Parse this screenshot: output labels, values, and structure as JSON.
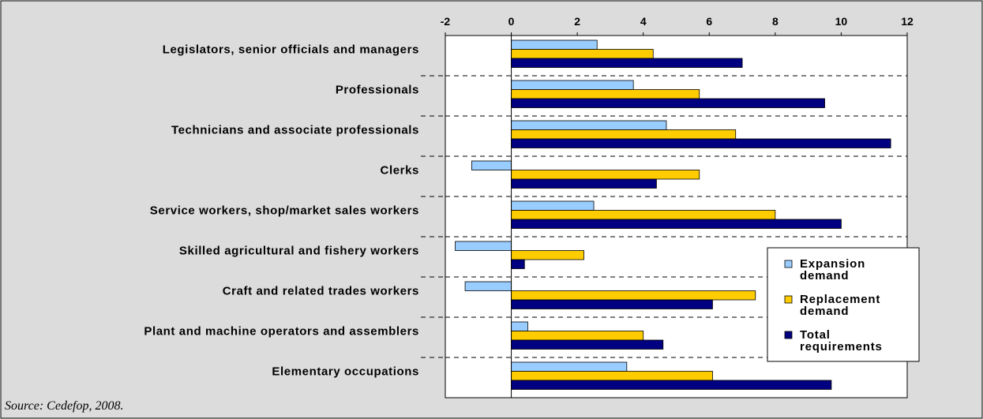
{
  "chart_data": {
    "type": "bar",
    "orientation": "horizontal",
    "categories": [
      "Legislators, senior officials and managers",
      "Professionals",
      "Technicians and associate professionals",
      "Clerks",
      "Service workers, shop/market sales workers",
      "Skilled agricultural and fishery workers",
      "Craft and related trades workers",
      "Plant and machine operators and assemblers",
      "Elementary occupations"
    ],
    "series": [
      {
        "name": "Expansion demand",
        "color": "#99ccff",
        "values": [
          2.6,
          3.7,
          4.7,
          -1.2,
          2.5,
          -1.7,
          -1.4,
          0.5,
          3.5
        ]
      },
      {
        "name": "Replacement demand",
        "color": "#ffcc00",
        "values": [
          4.3,
          5.7,
          6.8,
          5.7,
          8.0,
          2.2,
          7.4,
          4.0,
          6.1
        ]
      },
      {
        "name": "Total requirements",
        "color": "#000080",
        "values": [
          7.0,
          9.5,
          11.5,
          4.4,
          10.0,
          0.4,
          6.1,
          4.6,
          9.7
        ]
      }
    ],
    "xlim": [
      -2,
      12
    ],
    "xticks": [
      "-2",
      "0",
      "2",
      "4",
      "6",
      "8",
      "10",
      "12"
    ],
    "xaxis_position": "top",
    "gridlines": "dashed-between-categories",
    "legend_position": "right",
    "legend": [
      {
        "text": [
          "Expansion",
          "demand"
        ],
        "color": "#99ccff"
      },
      {
        "text": [
          "Replacement",
          "demand"
        ],
        "color": "#ffcc00"
      },
      {
        "text": [
          "Total",
          "requirements"
        ],
        "color": "#000080"
      }
    ],
    "background_color": "#dcdcdc",
    "plot_background_color": "#ffffff"
  },
  "source": "Source: Cedefop, 2008."
}
